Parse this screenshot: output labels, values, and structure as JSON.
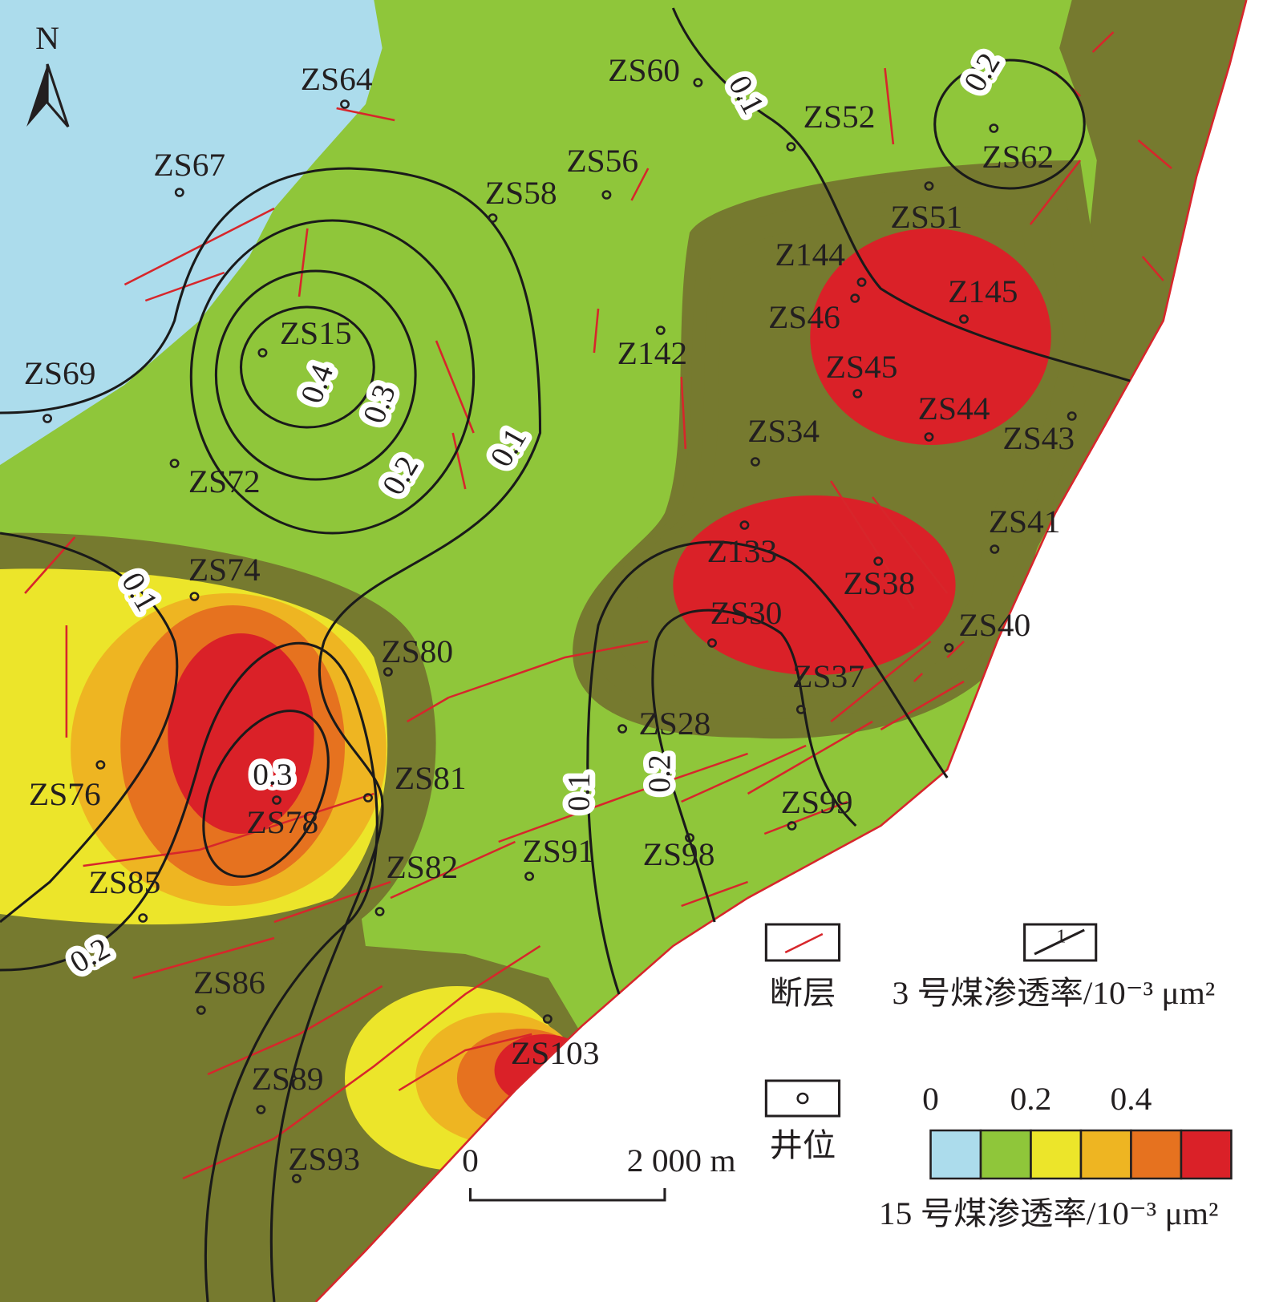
{
  "north": "N",
  "wells": [
    "ZS64",
    "ZS60",
    "ZS52",
    "ZS62",
    "ZS67",
    "ZS56",
    "ZS58",
    "ZS51",
    "Z144",
    "Z145",
    "ZS46",
    "Z142",
    "ZS15",
    "ZS45",
    "ZS69",
    "ZS44",
    "ZS34",
    "ZS43",
    "ZS72",
    "ZS41",
    "Z133",
    "ZS74",
    "ZS38",
    "ZS30",
    "ZS40",
    "ZS80",
    "ZS37",
    "ZS28",
    "ZS76",
    "ZS81",
    "ZS78",
    "ZS99",
    "ZS91",
    "ZS98",
    "ZS82",
    "ZS85",
    "ZS86",
    "ZS103",
    "ZS89",
    "ZS93"
  ],
  "contour_labels": [
    "0.1",
    "0.2",
    "0.4",
    "0.3",
    "0.2",
    "0.1",
    "0.1",
    "0.3",
    "0.2",
    "0.1",
    "0.2"
  ],
  "legend": {
    "fault": "断层",
    "fault_symbol_label": "1",
    "coal3_title": "3 号煤渗透率/10⁻³ μm²",
    "well": "井位",
    "scale_start": "0",
    "scale_end": "2 000 m",
    "coal15_ticks": [
      "0",
      "0.2",
      "0.4"
    ],
    "coal15_title": "15 号煤渗透率/10⁻³ μm²",
    "coal15_colors": [
      "#acdcec",
      "#8fc63a",
      "#ece52a",
      "#eeb522",
      "#e6721f",
      "#da2128"
    ]
  }
}
